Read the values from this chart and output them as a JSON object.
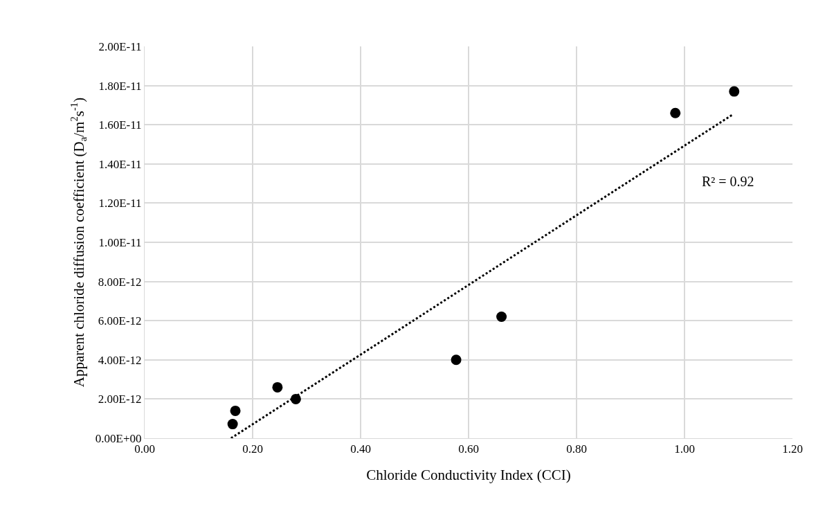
{
  "chart_data": {
    "type": "scatter",
    "xlabel": "Chloride Conductivity Index (CCI)",
    "ylabel": "Apparent chloride diffusion coefficient (D$_{a}$/m$^{2}$s$^{-1}$)",
    "series": [
      {
        "type": "scatter",
        "color": "#000000",
        "marker": "circle",
        "x": [
          0.163,
          0.168,
          0.246,
          0.28,
          0.577,
          0.661,
          0.983,
          1.092
        ],
        "values": [
          7.2e-13,
          1.4e-12,
          2.6e-12,
          2e-12,
          4e-12,
          6.2e-12,
          1.66e-11,
          1.77e-11
        ]
      },
      {
        "type": "line",
        "color": "#000000",
        "line_style": "dotted",
        "marker": "none",
        "x": [
          0.16,
          1.088
        ],
        "values": [
          0,
          1.65e-11
        ]
      }
    ],
    "annotations": [
      "R² = 0.92"
    ],
    "xlim": [
      0,
      1.2
    ],
    "xticks": [
      {
        "value": 0,
        "label": "0.00"
      },
      {
        "value": 0.2,
        "label": "0.20"
      },
      {
        "value": 0.4,
        "label": "0.40"
      },
      {
        "value": 0.6,
        "label": "0.60"
      },
      {
        "value": 0.8,
        "label": "0.80"
      },
      {
        "value": 1.0,
        "label": "1.00"
      },
      {
        "value": 1.2,
        "label": "1.20"
      }
    ],
    "ylim": [
      0,
      2e-11
    ],
    "yticks": [
      {
        "value": 0,
        "label": "0.00E+00"
      },
      {
        "value": 2e-12,
        "label": "2.00E-12"
      },
      {
        "value": 4e-12,
        "label": "4.00E-12"
      },
      {
        "value": 6e-12,
        "label": "6.00E-12"
      },
      {
        "value": 8e-12,
        "label": "8.00E-12"
      },
      {
        "value": 1e-11,
        "label": "1.00E-11"
      },
      {
        "value": 1.2e-11,
        "label": "1.20E-11"
      },
      {
        "value": 1.4e-11,
        "label": "1.40E-11"
      },
      {
        "value": 1.6e-11,
        "label": "1.60E-11"
      },
      {
        "value": 1.8e-11,
        "label": "1.80E-11"
      },
      {
        "value": 2e-11,
        "label": "2.00E-11"
      }
    ],
    "grid": true
  }
}
